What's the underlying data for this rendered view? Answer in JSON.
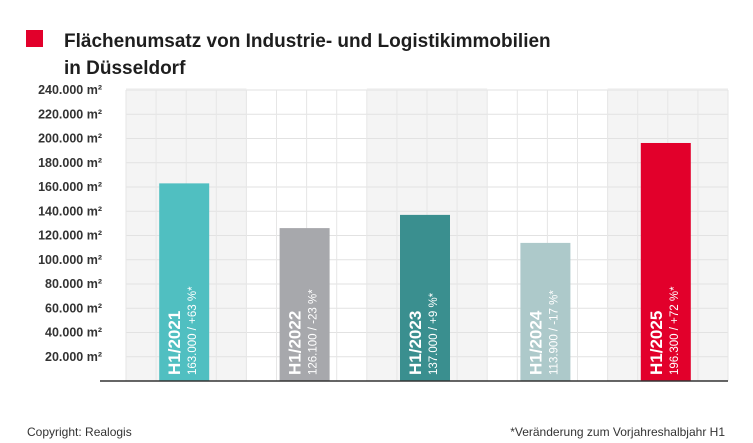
{
  "title": {
    "line1": "Flächenumsatz von Industrie- und Logistikimmobilien",
    "line2": "in Düsseldorf"
  },
  "footer": {
    "copyright": "Copyright: Realogis",
    "footnote": "*Veränderung zum Vorjahreshalbjahr H1"
  },
  "chart_data": {
    "type": "bar",
    "title": "Flächenumsatz von Industrie- und Logistikimmobilien in Düsseldorf",
    "ylim": [
      0,
      240000
    ],
    "yticks": [
      20000,
      40000,
      60000,
      80000,
      100000,
      120000,
      140000,
      160000,
      180000,
      200000,
      220000,
      240000
    ],
    "ytick_labels": [
      "20.000 m²",
      "40.000 m²",
      "60.000 m²",
      "80.000 m²",
      "100.000 m²",
      "120.000 m²",
      "140.000 m²",
      "160.000 m²",
      "180.000 m²",
      "200.000 m²",
      "220.000 m²",
      "240.000 m²"
    ],
    "grid": true,
    "categories": [
      "H1/2021",
      "H1/2022",
      "H1/2023",
      "H1/2024",
      "H1/2025"
    ],
    "values": [
      163000,
      126100,
      137000,
      113900,
      196300
    ],
    "bar_labels": [
      "163.000 / +63 %*",
      "126.100 / -23 %*",
      "137.000 / +9 %*",
      "113.900 / -17 %*",
      "196.300 / +72 %*"
    ],
    "colors": [
      "#50bfc1",
      "#a7a8ac",
      "#3a8f8f",
      "#adc9ca",
      "#e2002b"
    ]
  }
}
